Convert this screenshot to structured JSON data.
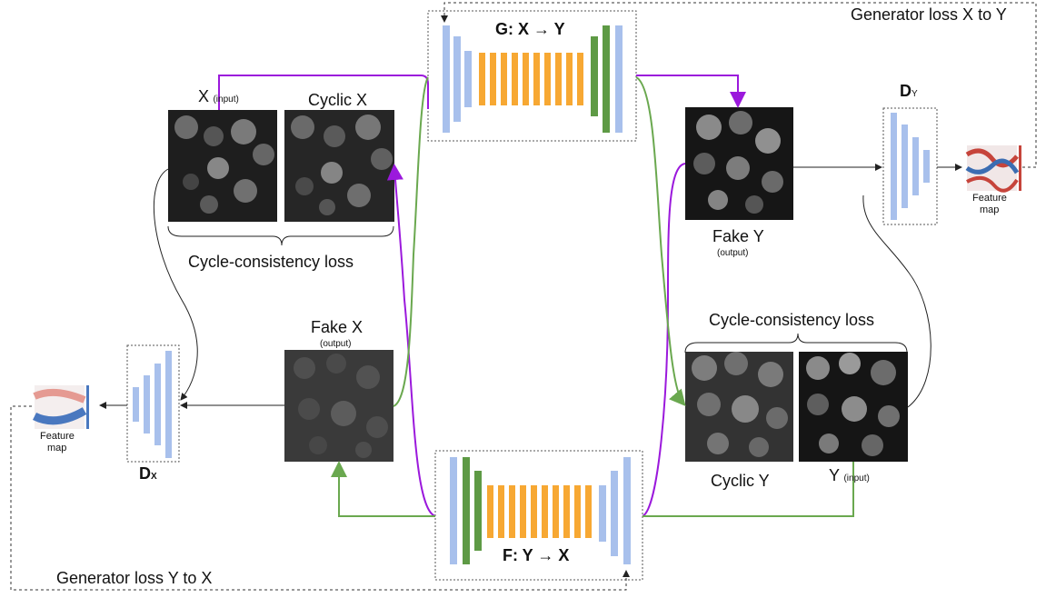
{
  "diagram": {
    "generator_g": {
      "label": "G: X → Y"
    },
    "generator_f": {
      "label": "F: Y → X"
    },
    "disc_y": {
      "label": "D",
      "sub": "Y",
      "feature_label_1": "Feature",
      "feature_label_2": "map"
    },
    "disc_x": {
      "label": "D",
      "sub": "X",
      "feature_label_1": "Feature",
      "feature_label_2": "map"
    },
    "images": {
      "x_input": {
        "label": "X",
        "sub": "(input)"
      },
      "cyclic_x": {
        "label": "Cyclic X"
      },
      "fake_y": {
        "label": "Fake Y",
        "sub": "(output)"
      },
      "fake_x": {
        "label": "Fake X",
        "sub": "(output)"
      },
      "cyclic_y": {
        "label": "Cyclic Y"
      },
      "y_input": {
        "label": "Y",
        "sub": "(input)"
      }
    },
    "losses": {
      "cycle_top": "Cycle-consistency  loss",
      "cycle_right": "Cycle-consistency  loss",
      "gen_x_to_y": "Generator loss X to Y",
      "gen_y_to_x": "Generator loss Y to X"
    },
    "colors": {
      "encoder_blue": "#a8c0ec",
      "resblock_orange": "#f7a833",
      "bottleneck_green": "#5e9a45",
      "arrow_purple": "#9b19dc",
      "arrow_green": "#6aa84f"
    }
  }
}
